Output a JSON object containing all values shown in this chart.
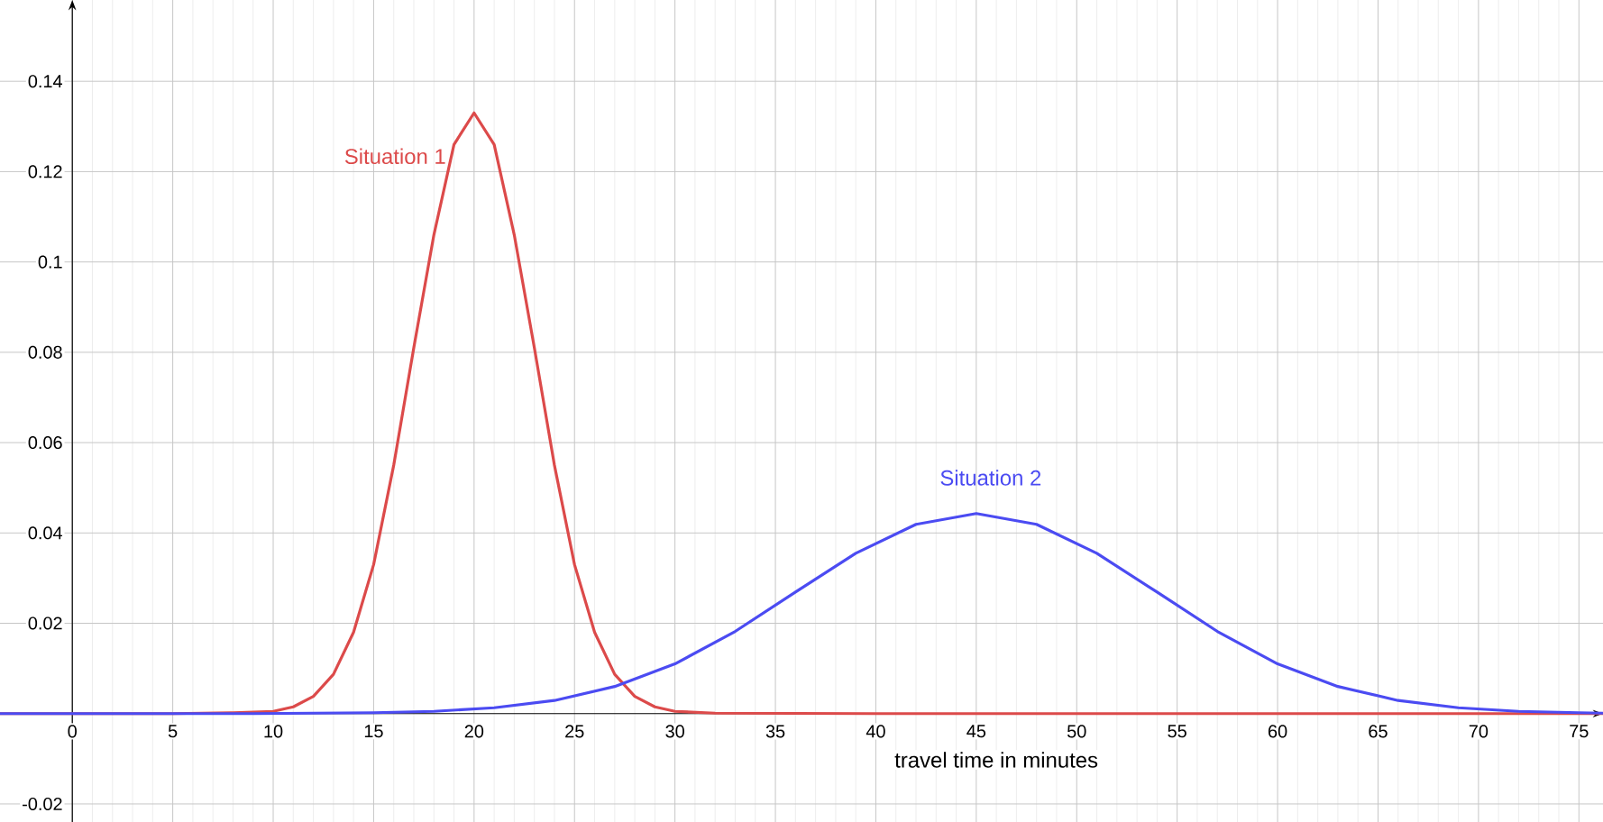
{
  "chart_data": {
    "type": "line",
    "xlabel": "travel time in minutes",
    "xlim": [
      -3.6,
      76.2
    ],
    "ylim": [
      -0.024,
      0.158
    ],
    "xticks": [
      0,
      5,
      10,
      15,
      20,
      25,
      30,
      35,
      40,
      45,
      50,
      55,
      60,
      65,
      70,
      75
    ],
    "yticks": [
      -0.02,
      0.02,
      0.04,
      0.06,
      0.08,
      0.1,
      0.12,
      0.14
    ],
    "grid": true,
    "legend": false,
    "marker": "none",
    "line_style": "solid",
    "series": [
      {
        "name": "Situation 1",
        "color": "#dc4a4a",
        "x": [
          -3.6,
          5,
          8,
          10,
          11,
          12,
          13,
          14,
          15,
          16,
          17,
          18,
          19,
          20,
          21,
          22,
          23,
          24,
          25,
          26,
          27,
          28,
          29,
          30,
          32,
          40,
          76.2
        ],
        "values": [
          0,
          0,
          0.0002,
          0.0005,
          0.0015,
          0.0038,
          0.0087,
          0.018,
          0.033,
          0.055,
          0.081,
          0.106,
          0.126,
          0.133,
          0.126,
          0.106,
          0.081,
          0.055,
          0.033,
          0.018,
          0.0087,
          0.0038,
          0.0015,
          0.0005,
          0.0001,
          0,
          0
        ]
      },
      {
        "name": "Situation 2",
        "color": "#4b4bf2",
        "x": [
          -3.6,
          0,
          9,
          12,
          15,
          18,
          21,
          24,
          27,
          30,
          33,
          36,
          39,
          42,
          45,
          48,
          51,
          54,
          57,
          60,
          63,
          66,
          69,
          72,
          75,
          76.2
        ],
        "values": [
          0,
          0,
          0,
          0.0001,
          0.0002,
          0.0005,
          0.0013,
          0.0029,
          0.006,
          0.011,
          0.0182,
          0.0269,
          0.0355,
          0.0419,
          0.0443,
          0.0419,
          0.0355,
          0.0269,
          0.0182,
          0.011,
          0.006,
          0.0029,
          0.0013,
          0.0005,
          0.0002,
          0.0001
        ]
      }
    ]
  }
}
